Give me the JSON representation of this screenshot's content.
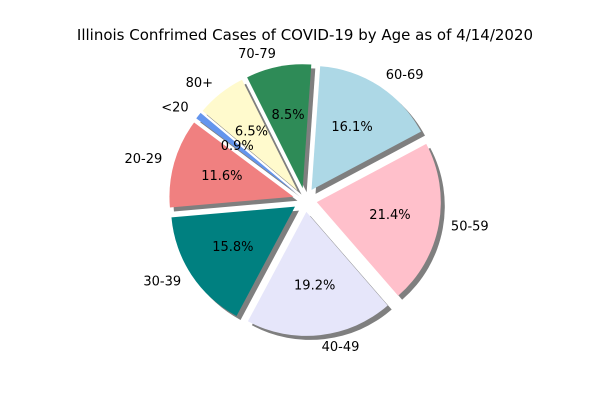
{
  "chart_data": {
    "type": "pie",
    "title": "Illinois Confrimed Cases of COVID-19 by Age as of 4/14/2020",
    "categories": [
      "<20",
      "20-29",
      "30-39",
      "40-49",
      "50-59",
      "60-69",
      "70-79",
      "80+"
    ],
    "values": [
      0.9,
      11.6,
      15.8,
      19.2,
      21.4,
      16.1,
      8.5,
      6.5
    ],
    "value_labels": [
      "0.9%",
      "11.6%",
      "15.8%",
      "19.2%",
      "21.4%",
      "16.1%",
      "8.5%",
      "6.5%"
    ],
    "colors": [
      "#6495ED",
      "#F08080",
      "#008080",
      "#E6E6FA",
      "#FFC0CB",
      "#ADD8E6",
      "#2E8B57",
      "#FFFACD"
    ],
    "exploded": true,
    "shadow": true,
    "start_angle_deg": 140,
    "direction": "counterclockwise"
  }
}
